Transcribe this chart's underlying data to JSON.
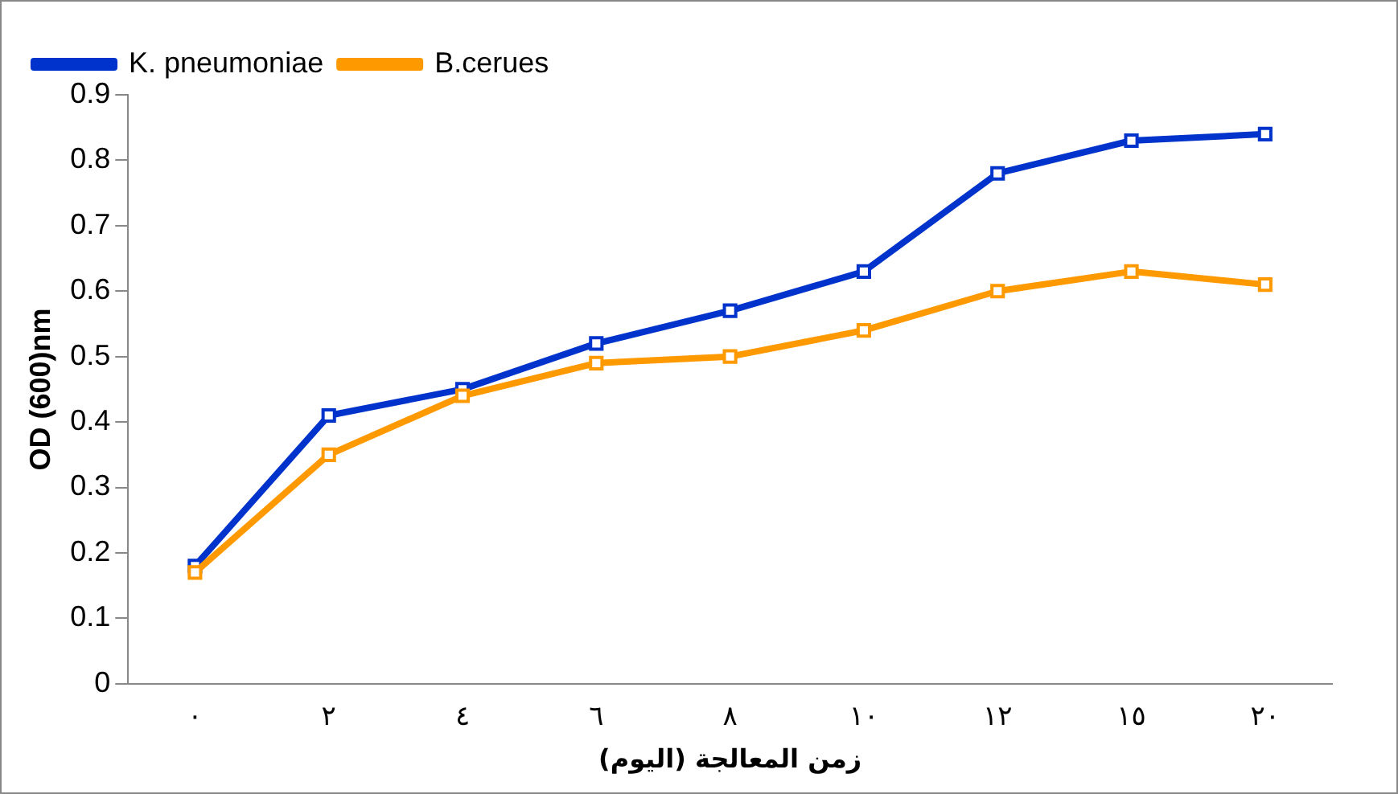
{
  "chart_data": {
    "type": "line",
    "xlabel": "زمن المعالجة (اليوم)",
    "ylabel": "OD (600)nm",
    "categories": [
      "٠",
      "٢",
      "٤",
      "٦",
      "٨",
      "١٠",
      "١٢",
      "١٥",
      "٢٠"
    ],
    "series": [
      {
        "name": "K. pneumoniae",
        "color": "#0033cc",
        "values": [
          0.18,
          0.41,
          0.45,
          0.52,
          0.57,
          0.63,
          0.78,
          0.83,
          0.84
        ]
      },
      {
        "name": "B.cerues",
        "color": "#ff9900",
        "values": [
          0.17,
          0.35,
          0.44,
          0.49,
          0.5,
          0.54,
          0.6,
          0.63,
          0.61
        ]
      }
    ],
    "ylim": [
      0,
      0.9
    ],
    "yticks": [
      0,
      0.1,
      0.2,
      0.3,
      0.4,
      0.5,
      0.6,
      0.7,
      0.8,
      0.9
    ],
    "grid": false,
    "legend": "top left",
    "marker": "square",
    "line_style": "solid"
  }
}
